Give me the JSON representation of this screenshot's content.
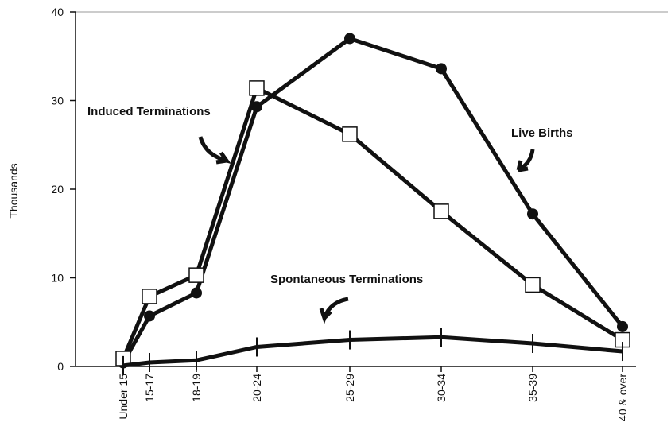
{
  "chart_data": {
    "type": "line",
    "ylabel": "Thousands",
    "categories": [
      "Under 15",
      "15-17",
      "18-19",
      "20-24",
      "25-29",
      "30-34",
      "35-39",
      "40 & over"
    ],
    "series": [
      {
        "name": "Live Births",
        "color": "#111111",
        "marker": "circle",
        "values": [
          0.4,
          5.7,
          8.3,
          29.3,
          37.0,
          33.6,
          17.2,
          4.5
        ]
      },
      {
        "name": "Induced Terminations",
        "color": "#111111",
        "marker": "square",
        "values": [
          0.9,
          7.9,
          10.3,
          31.4,
          26.2,
          17.5,
          9.2,
          3.0
        ]
      },
      {
        "name": "Spontaneous Terminations",
        "color": "#111111",
        "marker": "tick",
        "values": [
          0.1,
          0.45,
          0.7,
          2.2,
          3.0,
          3.3,
          2.6,
          1.7
        ]
      }
    ],
    "annotations": [
      "Induced Terminations",
      "Live Births",
      "Spontaneous Terminations"
    ],
    "ylim": [
      0,
      40
    ],
    "yticks": [
      0,
      10,
      20,
      30,
      40
    ],
    "grid": false
  }
}
